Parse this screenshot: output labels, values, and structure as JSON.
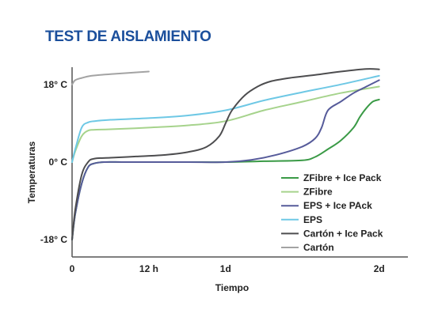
{
  "chart_data": {
    "type": "line",
    "title": "TEST DE AISLAMIENTO",
    "xlabel": "Tiempo",
    "ylabel": "Temperaturas",
    "x_ticks": [
      {
        "value": 0,
        "label": "0"
      },
      {
        "value": 12,
        "label": "12 h"
      },
      {
        "value": 24,
        "label": "1d"
      },
      {
        "value": 48,
        "label": "2d"
      }
    ],
    "y_ticks": [
      {
        "value": -18,
        "label": "-18° C"
      },
      {
        "value": 0,
        "label": "0° C"
      },
      {
        "value": 18,
        "label": "18° C"
      }
    ],
    "xlim": [
      0,
      52
    ],
    "ylim": [
      -22,
      22
    ],
    "grid": false,
    "legend_position": "bottom-right",
    "series": [
      {
        "name": "ZFibre + Ice Pack",
        "color": "#3a9a46",
        "x": [
          0,
          0.5,
          1.5,
          2.5,
          3.5,
          5,
          8,
          12,
          18,
          24,
          30,
          36,
          38,
          40,
          42,
          44,
          45,
          46,
          47,
          48
        ],
        "y": [
          -18,
          -12,
          -5,
          -1.2,
          -0.3,
          0,
          0,
          0,
          0,
          0,
          0.2,
          0.4,
          1.2,
          3,
          5,
          8,
          10.5,
          12.5,
          14,
          14.5
        ]
      },
      {
        "name": "ZFibre",
        "color": "#a6d38c",
        "x": [
          0,
          0.5,
          1.5,
          2.5,
          3.5,
          6,
          12,
          18,
          24,
          30,
          36,
          42,
          48
        ],
        "y": [
          0,
          2.5,
          6,
          7.3,
          7.5,
          7.6,
          8,
          8.5,
          9.5,
          12,
          14,
          16,
          17.5
        ]
      },
      {
        "name": "EPS + Ice PAck",
        "color": "#565b9a",
        "x": [
          0,
          0.5,
          1.5,
          2.5,
          3.5,
          5,
          8,
          12,
          18,
          24,
          28,
          32,
          36,
          38,
          39,
          40,
          42,
          44,
          46,
          48
        ],
        "y": [
          -18,
          -12,
          -5,
          -1.2,
          -0.3,
          0,
          0,
          0,
          0,
          0,
          0.5,
          1.7,
          3.6,
          5.5,
          8,
          12,
          14,
          16,
          17.5,
          19
        ]
      },
      {
        "name": "EPS",
        "color": "#6ec8e5",
        "x": [
          0,
          0.5,
          1.5,
          2.5,
          3.5,
          6,
          12,
          18,
          24,
          30,
          36,
          42,
          48
        ],
        "y": [
          0,
          3,
          8,
          9.2,
          9.5,
          9.8,
          10.2,
          10.8,
          12,
          14.3,
          16.2,
          18,
          20
        ]
      },
      {
        "name": "Cartón + Ice Pack",
        "color": "#4d4d4f",
        "x": [
          0,
          0.5,
          1.5,
          2.5,
          3.5,
          6,
          10,
          14,
          18,
          21,
          23,
          24,
          25,
          27,
          29,
          31,
          34,
          38,
          42,
          46,
          48
        ],
        "y": [
          -18,
          -11,
          -3,
          0,
          0.8,
          1,
          1.3,
          1.6,
          2.3,
          3.5,
          6,
          9,
          12,
          15.5,
          17.5,
          18.7,
          19.5,
          20.2,
          21,
          21.6,
          21.5
        ]
      },
      {
        "name": "Cartón",
        "color": "#a3a3a3",
        "x": [
          0,
          0.5,
          1.5,
          3,
          6,
          9,
          12
        ],
        "y": [
          18,
          19,
          19.5,
          20,
          20.4,
          20.7,
          21
        ]
      }
    ]
  }
}
